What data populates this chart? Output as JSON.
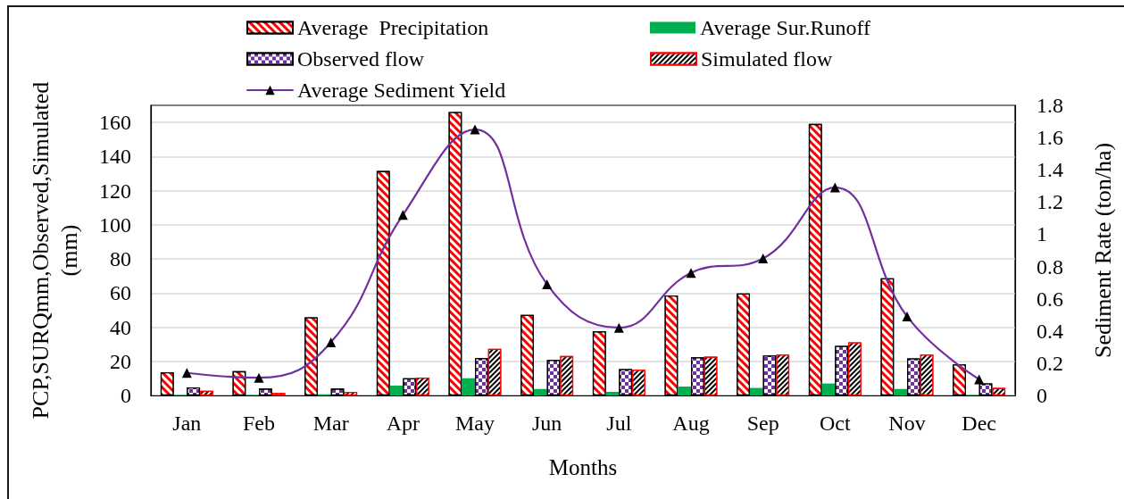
{
  "chart_data": {
    "type": "bar",
    "categories": [
      "Jan",
      "Feb",
      "Mar",
      "Apr",
      "May",
      "Jun",
      "Jul",
      "Aug",
      "Sep",
      "Oct",
      "Nov",
      "Dec"
    ],
    "series": [
      {
        "name": "Average  Precipitation",
        "color": "#ff0000",
        "values": [
          13.6,
          14.2,
          45.8,
          131.5,
          166.1,
          47.2,
          37.6,
          58.6,
          59.8,
          159.1,
          68.7,
          18.2
        ]
      },
      {
        "name": "Average Sur.Runoff",
        "color": "#00b050",
        "values": [
          0.3,
          0.3,
          0.7,
          5.8,
          10.1,
          3.8,
          2.1,
          5.2,
          4.4,
          7.0,
          3.8,
          0.3
        ]
      },
      {
        "name": "Observed flow",
        "color": "#7030a0",
        "values": [
          4.7,
          4.0,
          4.0,
          10.1,
          21.8,
          20.8,
          15.4,
          22.4,
          23.4,
          29.0,
          21.7,
          7.1
        ]
      },
      {
        "name": "Simulated flow",
        "color": "#000000",
        "values": [
          2.8,
          1.4,
          2.1,
          10.5,
          27.3,
          23.1,
          15.0,
          22.7,
          23.9,
          31.1,
          23.9,
          4.4
        ]
      },
      {
        "name": "Average Sediment Yield",
        "type": "line",
        "axis": "y2",
        "color": "#7030a0",
        "values": [
          0.14,
          0.11,
          0.33,
          1.12,
          1.65,
          0.69,
          0.42,
          0.76,
          0.85,
          1.29,
          0.49,
          0.1
        ]
      }
    ],
    "xlabel": "Months",
    "ylabel": "PCP,SURQmm,Observed,Simulated (mm)",
    "y2label": "Sediment Rate (ton/ha)",
    "ylim": [
      0,
      170
    ],
    "yticks": [
      0,
      20,
      40,
      60,
      80,
      100,
      120,
      140,
      160
    ],
    "y2lim": [
      0,
      1.8
    ],
    "y2ticks": [
      0,
      0.2,
      0.4,
      0.6,
      0.8,
      1,
      1.2,
      1.4,
      1.6,
      1.8
    ],
    "grid": "y",
    "legend": "top",
    "marker": "triangle",
    "line_style": "solid"
  }
}
